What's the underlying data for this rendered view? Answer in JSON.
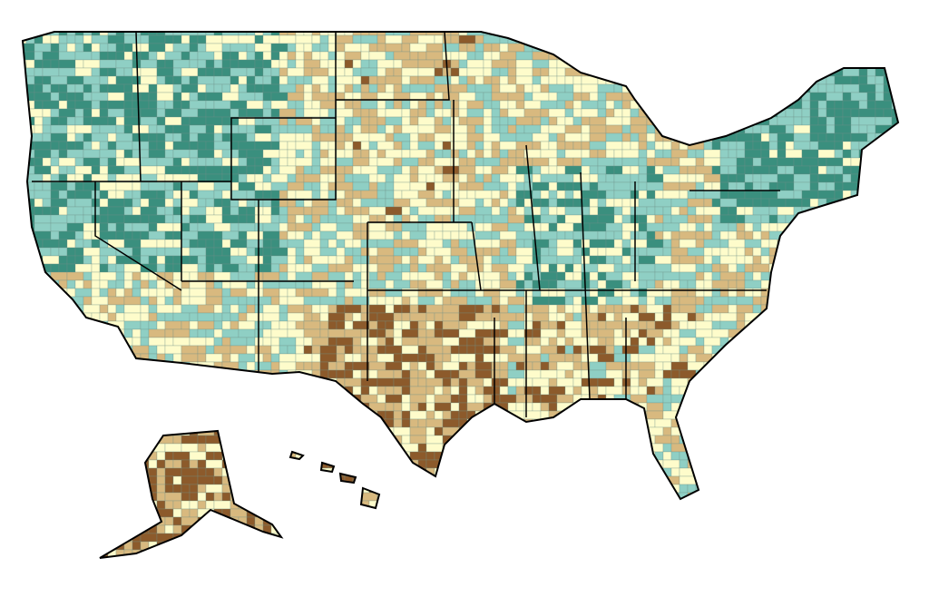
{
  "map": {
    "palette": [
      "#8c5a2b",
      "#d8b97f",
      "#fefccb",
      "#8fcfc4",
      "#3a8f7e"
    ]
  }
}
